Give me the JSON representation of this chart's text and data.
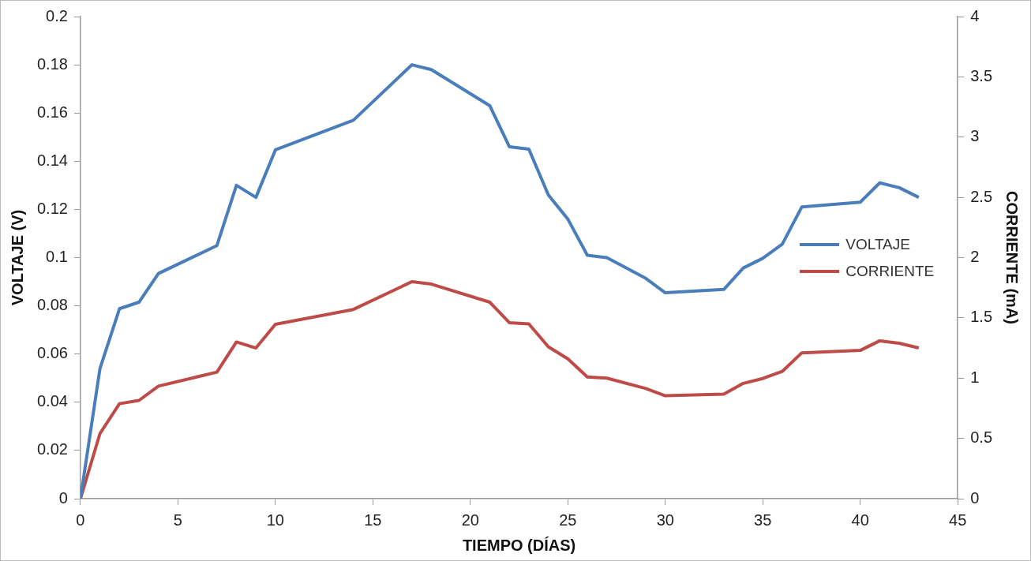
{
  "chart_data": {
    "type": "line",
    "xlabel": "TIEMPO (DÍAS)",
    "ylabel": "VOLTAJE (V)",
    "y2label": "CORRIENTE (mA)",
    "x": [
      0,
      1,
      2,
      3,
      4,
      7,
      8,
      9,
      10,
      14,
      17,
      18,
      21,
      22,
      23,
      24,
      25,
      26,
      27,
      29,
      30,
      33,
      34,
      35,
      36,
      37,
      40,
      41,
      42,
      43
    ],
    "series": [
      {
        "name": "VOLTAJE",
        "color": "#4a7ebb",
        "values": [
          0,
          0.054,
          0.0788,
          0.0815,
          0.0934,
          0.105,
          0.13,
          0.125,
          0.1447,
          0.157,
          0.18,
          0.178,
          0.163,
          0.146,
          0.145,
          0.126,
          0.116,
          0.101,
          0.1,
          0.0914,
          0.0854,
          0.0868,
          0.0957,
          0.0997,
          0.1056,
          0.121,
          0.123,
          0.131,
          0.129,
          0.125
        ]
      },
      {
        "name": "CORRIENTE",
        "color": "#be4b48",
        "axis": "y2",
        "values": [
          0,
          0.54,
          0.788,
          0.815,
          0.934,
          1.05,
          1.3,
          1.25,
          1.447,
          1.57,
          1.8,
          1.78,
          1.63,
          1.46,
          1.45,
          1.26,
          1.16,
          1.01,
          1.0,
          0.914,
          0.854,
          0.868,
          0.957,
          0.997,
          1.056,
          1.21,
          1.23,
          1.31,
          1.29,
          1.25
        ]
      }
    ],
    "xlim": [
      0,
      45
    ],
    "xticks": [
      0,
      5,
      10,
      15,
      20,
      25,
      30,
      35,
      40,
      45
    ],
    "ylim": [
      0,
      0.2
    ],
    "yticks": [
      0,
      0.02,
      0.04,
      0.06,
      0.08,
      0.1,
      0.12,
      0.14,
      0.16,
      0.18,
      0.2
    ],
    "y2lim": [
      0,
      4
    ],
    "y2ticks": [
      0,
      0.5,
      1,
      1.5,
      2,
      2.5,
      3,
      3.5,
      4
    ],
    "grid": false,
    "legend": "right",
    "marker": "none",
    "line_style": "solid"
  }
}
